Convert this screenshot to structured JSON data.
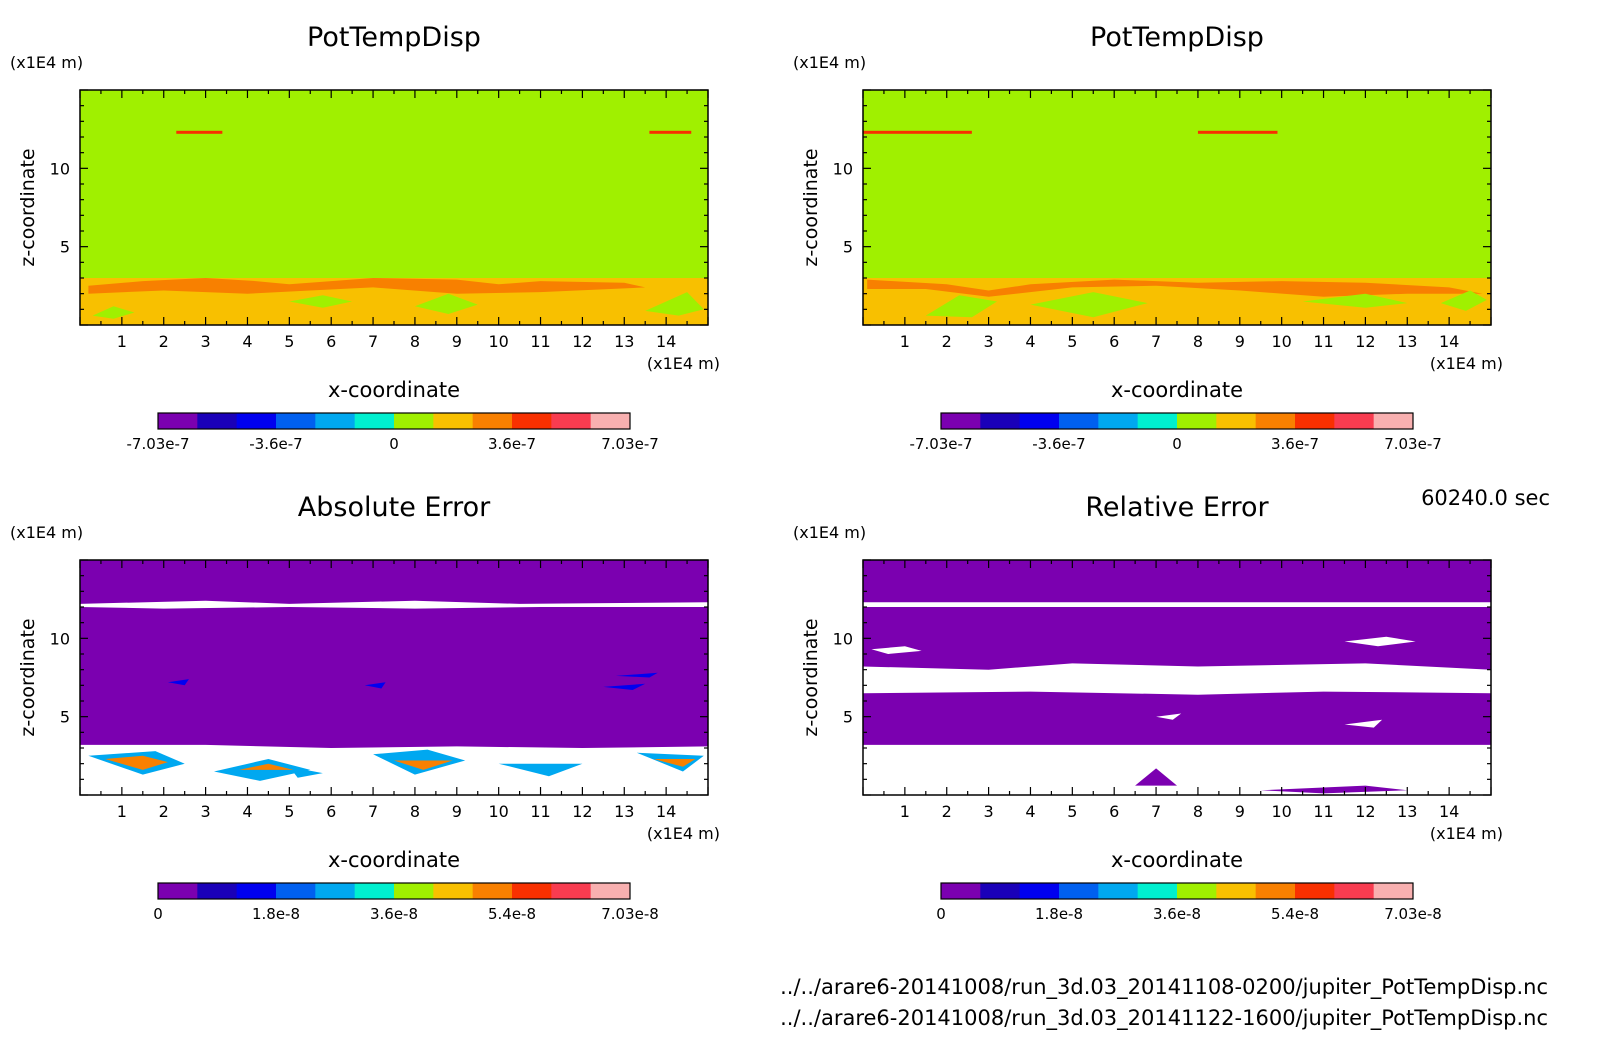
{
  "time_label": "60240.0 sec",
  "files": [
    "../../arare6-20141008/run_3d.03_20141108-0200/jupiter_PotTempDisp.nc",
    "../../arare6-20141008/run_3d.03_20141122-1600/jupiter_PotTempDisp.nc"
  ],
  "chart_data": [
    {
      "type": "heatmap",
      "title": "PotTempDisp",
      "xlabel": "x-coordinate",
      "ylabel": "z-coordinate",
      "x_unit": "(x1E4 m)",
      "y_unit": "(x1E4 m)",
      "xlim": [
        0,
        15
      ],
      "ylim": [
        0,
        15
      ],
      "x_ticks": [
        1,
        2,
        3,
        4,
        5,
        6,
        7,
        8,
        9,
        10,
        11,
        12,
        13,
        14
      ],
      "y_ticks": [
        5,
        10
      ],
      "colorbar": {
        "colors": [
          "#7b00b0",
          "#1a00b8",
          "#0000f0",
          "#0060f0",
          "#00a8f0",
          "#00f0d0",
          "#a0f000",
          "#f8c000",
          "#f88000",
          "#f83000",
          "#f83c50",
          "#f8b0b0"
        ],
        "tick_labels": [
          "-7.03e-7",
          "-3.6e-7",
          "0",
          "3.6e-7",
          "7.03e-7"
        ]
      }
    },
    {
      "type": "heatmap",
      "title": "PotTempDisp",
      "xlabel": "x-coordinate",
      "ylabel": "z-coordinate",
      "x_unit": "(x1E4 m)",
      "y_unit": "(x1E4 m)",
      "xlim": [
        0,
        15
      ],
      "ylim": [
        0,
        15
      ],
      "x_ticks": [
        1,
        2,
        3,
        4,
        5,
        6,
        7,
        8,
        9,
        10,
        11,
        12,
        13,
        14
      ],
      "y_ticks": [
        5,
        10
      ],
      "colorbar": {
        "colors": [
          "#7b00b0",
          "#1a00b8",
          "#0000f0",
          "#0060f0",
          "#00a8f0",
          "#00f0d0",
          "#a0f000",
          "#f8c000",
          "#f88000",
          "#f83000",
          "#f83c50",
          "#f8b0b0"
        ],
        "tick_labels": [
          "-7.03e-7",
          "-3.6e-7",
          "0",
          "3.6e-7",
          "7.03e-7"
        ]
      }
    },
    {
      "type": "heatmap",
      "title": "Absolute Error",
      "xlabel": "x-coordinate",
      "ylabel": "z-coordinate",
      "x_unit": "(x1E4 m)",
      "y_unit": "(x1E4 m)",
      "xlim": [
        0,
        15
      ],
      "ylim": [
        0,
        15
      ],
      "x_ticks": [
        1,
        2,
        3,
        4,
        5,
        6,
        7,
        8,
        9,
        10,
        11,
        12,
        13,
        14
      ],
      "y_ticks": [
        5,
        10
      ],
      "colorbar": {
        "colors": [
          "#7b00b0",
          "#1a00b8",
          "#0000f0",
          "#0060f0",
          "#00a8f0",
          "#00f0d0",
          "#a0f000",
          "#f8c000",
          "#f88000",
          "#f83000",
          "#f83c50",
          "#f8b0b0"
        ],
        "tick_labels": [
          "0",
          "1.8e-8",
          "3.6e-8",
          "5.4e-8",
          "7.03e-8"
        ]
      }
    },
    {
      "type": "heatmap",
      "title": "Relative Error",
      "xlabel": "x-coordinate",
      "ylabel": "z-coordinate",
      "x_unit": "(x1E4 m)",
      "y_unit": "(x1E4 m)",
      "xlim": [
        0,
        15
      ],
      "ylim": [
        0,
        15
      ],
      "x_ticks": [
        1,
        2,
        3,
        4,
        5,
        6,
        7,
        8,
        9,
        10,
        11,
        12,
        13,
        14
      ],
      "y_ticks": [
        5,
        10
      ],
      "colorbar": {
        "colors": [
          "#7b00b0",
          "#1a00b8",
          "#0000f0",
          "#0060f0",
          "#00a8f0",
          "#00f0d0",
          "#a0f000",
          "#f8c000",
          "#f88000",
          "#f83000",
          "#f83c50",
          "#f8b0b0"
        ],
        "tick_labels": [
          "0",
          "1.8e-8",
          "3.6e-8",
          "5.4e-8",
          "7.03e-8"
        ]
      }
    }
  ]
}
